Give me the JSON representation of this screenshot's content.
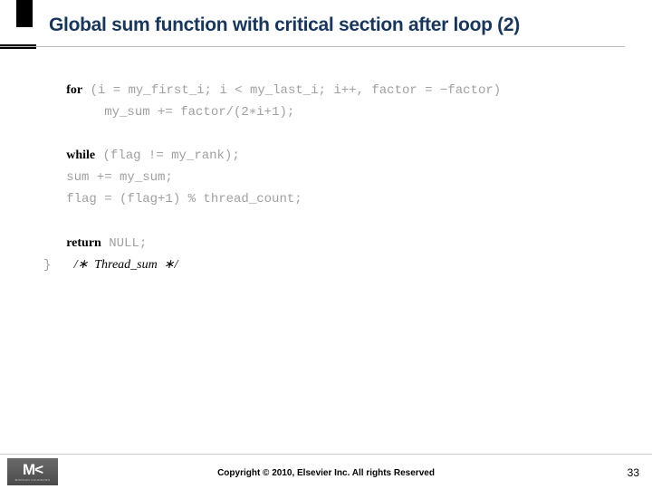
{
  "title": "Global sum function with critical section after loop (2)",
  "code": {
    "line1_kw": "for",
    "line1_rest": " (i = my_first_i; i < my_last_i; i++, factor = −factor)",
    "line2": "        my_sum += factor/(2∗i+1);",
    "line3_kw": "while",
    "line3_rest": " (flag != my_rank);",
    "line4": "   sum += my_sum;",
    "line5": "   flag = (flag+1) % thread_count;",
    "line6_kw": "return",
    "line6_rest": " NULL;",
    "line7_brace": "}   ",
    "line7_comment": "/∗  Thread_sum  ∗/"
  },
  "footer": {
    "copyright": "Copyright © 2010, Elsevier Inc. All rights Reserved",
    "page": "33",
    "logo_main": "M<",
    "logo_sub": "MORGAN KAUFMANN"
  },
  "colors": {
    "title_color": "#17365d",
    "code_gray": "#a0a0a0",
    "background": "#ffffff"
  }
}
